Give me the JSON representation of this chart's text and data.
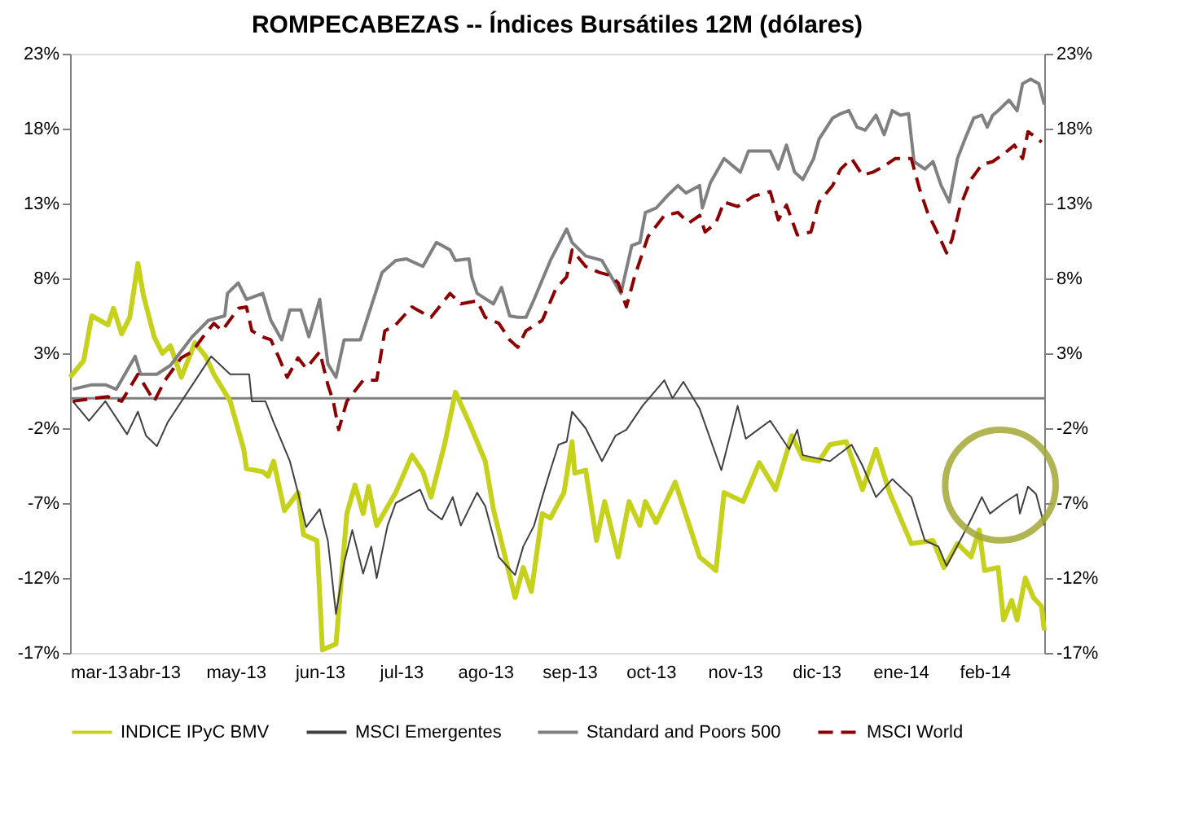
{
  "chart_data": {
    "type": "line",
    "title": "ROMPECABEZAS -- Índices Bursátiles 12M (dólares)",
    "grid": false,
    "legend": "bottom",
    "xlim": [
      "2013-03-01",
      "2014-02-23"
    ],
    "xticks": [
      {
        "value": "2013-03-01",
        "label": "mar-13"
      },
      {
        "value": "2013-04-01",
        "label": "abr-13"
      },
      {
        "value": "2013-05-01",
        "label": "may-13"
      },
      {
        "value": "2013-06-01",
        "label": "jun-13"
      },
      {
        "value": "2013-07-01",
        "label": "jul-13"
      },
      {
        "value": "2013-08-01",
        "label": "ago-13"
      },
      {
        "value": "2013-09-01",
        "label": "sep-13"
      },
      {
        "value": "2013-10-01",
        "label": "oct-13"
      },
      {
        "value": "2013-11-01",
        "label": "nov-13"
      },
      {
        "value": "2013-12-01",
        "label": "dic-13"
      },
      {
        "value": "2014-01-01",
        "label": "ene-14"
      },
      {
        "value": "2014-02-01",
        "label": "feb-14"
      }
    ],
    "ylim": [
      -17,
      23
    ],
    "yticks": [
      {
        "value": -17,
        "label": "-17%"
      },
      {
        "value": -12,
        "label": "-12%"
      },
      {
        "value": -7,
        "label": "-7%"
      },
      {
        "value": -2,
        "label": "-2%"
      },
      {
        "value": 3,
        "label": "3%"
      },
      {
        "value": 8,
        "label": "8%"
      },
      {
        "value": 13,
        "label": "13%"
      },
      {
        "value": 18,
        "label": "18%"
      },
      {
        "value": 23,
        "label": "23%"
      }
    ],
    "ref_lines": [
      {
        "axis": "y",
        "value": 0,
        "color": "#808080"
      }
    ],
    "y2lim": [
      -17,
      23
    ],
    "y2ticks": [
      {
        "value": -17,
        "label": "-17%"
      },
      {
        "value": -12,
        "label": "-12%"
      },
      {
        "value": -7,
        "label": "-7%"
      },
      {
        "value": -2,
        "label": "-2%"
      },
      {
        "value": 3,
        "label": "3%"
      },
      {
        "value": 8,
        "label": "8%"
      },
      {
        "value": 13,
        "label": "13%"
      },
      {
        "value": 18,
        "label": "18%"
      },
      {
        "value": 23,
        "label": "23%"
      }
    ],
    "series": [
      {
        "name": "INDICE IPyC BMV",
        "color": "#c5d11a",
        "line_style": "solid",
        "x": [
          "2013-03-01",
          "2013-03-06",
          "2013-03-09",
          "2013-03-15",
          "2013-03-17",
          "2013-03-20",
          "2013-03-23",
          "2013-03-26",
          "2013-03-28",
          "2013-04-01",
          "2013-04-04",
          "2013-04-07",
          "2013-04-11",
          "2013-04-16",
          "2013-04-20",
          "2013-04-23",
          "2013-04-29",
          "2013-05-04",
          "2013-05-05",
          "2013-05-11",
          "2013-05-13",
          "2013-05-15",
          "2013-05-19",
          "2013-05-24",
          "2013-05-26",
          "2013-05-31",
          "2013-06-02",
          "2013-06-07",
          "2013-06-11",
          "2013-06-14",
          "2013-06-17",
          "2013-06-19",
          "2013-06-22",
          "2013-06-29",
          "2013-07-05",
          "2013-07-09",
          "2013-07-12",
          "2013-07-17",
          "2013-07-21",
          "2013-07-26",
          "2013-08-01",
          "2013-08-04",
          "2013-08-12",
          "2013-08-15",
          "2013-08-18",
          "2013-08-22",
          "2013-08-25",
          "2013-08-30",
          "2013-09-02",
          "2013-09-03",
          "2013-09-07",
          "2013-09-11",
          "2013-09-14",
          "2013-09-19",
          "2013-09-23",
          "2013-09-27",
          "2013-09-29",
          "2013-10-03",
          "2013-10-10",
          "2013-10-19",
          "2013-10-25",
          "2013-10-28",
          "2013-11-04",
          "2013-11-10",
          "2013-11-16",
          "2013-11-22",
          "2013-11-26",
          "2013-12-02",
          "2013-12-06",
          "2013-12-12",
          "2013-12-18",
          "2013-12-23",
          "2013-12-28",
          "2014-01-05",
          "2014-01-13",
          "2014-01-17",
          "2014-01-22",
          "2014-01-27",
          "2014-01-30",
          "2014-02-01",
          "2014-02-06",
          "2014-02-08",
          "2014-02-11",
          "2014-02-13",
          "2014-02-16",
          "2014-02-19",
          "2014-02-22",
          "2014-02-23"
        ],
        "values": [
          1.4,
          2.5,
          5.5,
          4.9,
          6.0,
          4.3,
          5.4,
          9.0,
          6.9,
          4.1,
          3.0,
          3.5,
          1.4,
          3.7,
          2.8,
          1.6,
          -0.2,
          -3.4,
          -4.7,
          -4.9,
          -5.2,
          -4.2,
          -7.5,
          -6.3,
          -9.1,
          -9.5,
          -16.8,
          -16.4,
          -7.7,
          -5.8,
          -7.7,
          -5.9,
          -8.5,
          -6.3,
          -3.8,
          -4.9,
          -6.6,
          -3.1,
          0.4,
          -1.6,
          -4.2,
          -7.4,
          -13.3,
          -11.3,
          -12.9,
          -7.7,
          -8.0,
          -6.3,
          -2.9,
          -5.0,
          -4.8,
          -9.5,
          -6.9,
          -10.6,
          -6.9,
          -8.5,
          -6.9,
          -8.3,
          -5.6,
          -10.6,
          -11.5,
          -6.3,
          -6.9,
          -4.3,
          -6.1,
          -2.5,
          -4.0,
          -4.2,
          -3.1,
          -2.9,
          -6.1,
          -3.4,
          -6.3,
          -9.7,
          -9.5,
          -11.3,
          -9.7,
          -10.6,
          -8.8,
          -11.5,
          -11.3,
          -14.8,
          -13.5,
          -14.8,
          -12.0,
          -13.3,
          -13.9,
          -15.5
        ]
      },
      {
        "name": "MSCI Emergentes",
        "color": "#404040",
        "line_style": "solid",
        "x": [
          "2013-03-02",
          "2013-03-08",
          "2013-03-14",
          "2013-03-22",
          "2013-03-26",
          "2013-03-29",
          "2013-04-02",
          "2013-04-06",
          "2013-04-14",
          "2013-04-22",
          "2013-04-29",
          "2013-05-06",
          "2013-05-07",
          "2013-05-12",
          "2013-05-15",
          "2013-05-21",
          "2013-05-24",
          "2013-05-27",
          "2013-06-01",
          "2013-06-04",
          "2013-06-07",
          "2013-06-10",
          "2013-06-13",
          "2013-06-17",
          "2013-06-20",
          "2013-06-22",
          "2013-06-26",
          "2013-06-29",
          "2013-07-08",
          "2013-07-11",
          "2013-07-16",
          "2013-07-20",
          "2013-07-23",
          "2013-07-29",
          "2013-08-01",
          "2013-08-06",
          "2013-08-12",
          "2013-08-15",
          "2013-08-19",
          "2013-08-22",
          "2013-08-25",
          "2013-08-28",
          "2013-08-31",
          "2013-09-02",
          "2013-09-07",
          "2013-09-13",
          "2013-09-18",
          "2013-09-22",
          "2013-09-28",
          "2013-10-06",
          "2013-10-09",
          "2013-10-13",
          "2013-10-19",
          "2013-10-27",
          "2013-11-02",
          "2013-11-05",
          "2013-11-14",
          "2013-11-21",
          "2013-11-24",
          "2013-11-26",
          "2013-12-06",
          "2013-12-14",
          "2013-12-18",
          "2013-12-23",
          "2013-12-29",
          "2014-01-05",
          "2014-01-10",
          "2014-01-15",
          "2014-01-18",
          "2014-01-23",
          "2014-01-27",
          "2014-01-31",
          "2014-02-03",
          "2014-02-08",
          "2014-02-13",
          "2014-02-14",
          "2014-02-17",
          "2014-02-20",
          "2014-02-23"
        ],
        "values": [
          -0.2,
          -1.5,
          -0.2,
          -2.4,
          -0.9,
          -2.5,
          -3.2,
          -1.6,
          0.6,
          2.8,
          1.6,
          1.6,
          -0.2,
          -0.2,
          -1.6,
          -4.2,
          -6.3,
          -8.6,
          -7.4,
          -9.5,
          -14.4,
          -11.0,
          -8.8,
          -11.7,
          -9.9,
          -12.0,
          -8.5,
          -7.0,
          -6.1,
          -7.4,
          -8.1,
          -6.6,
          -8.5,
          -6.3,
          -7.2,
          -10.6,
          -11.8,
          -9.9,
          -8.5,
          -6.6,
          -4.8,
          -3.1,
          -2.9,
          -0.9,
          -2.0,
          -4.2,
          -2.5,
          -2.1,
          -0.5,
          1.2,
          0.0,
          1.1,
          -0.7,
          -4.8,
          -0.5,
          -2.7,
          -1.5,
          -3.4,
          -2.1,
          -3.8,
          -4.2,
          -3.1,
          -4.5,
          -6.6,
          -5.4,
          -6.6,
          -9.5,
          -9.9,
          -11.2,
          -9.5,
          -8.1,
          -6.6,
          -7.7,
          -7.0,
          -6.4,
          -7.7,
          -5.9,
          -6.4,
          -8.5
        ]
      },
      {
        "name": "Standard and Poors 500",
        "color": "#808080",
        "line_style": "solid",
        "x": [
          "2013-03-02",
          "2013-03-09",
          "2013-03-14",
          "2013-03-18",
          "2013-03-25",
          "2013-03-27",
          "2013-04-02",
          "2013-04-07",
          "2013-04-15",
          "2013-04-21",
          "2013-04-27",
          "2013-04-28",
          "2013-05-02",
          "2013-05-05",
          "2013-05-11",
          "2013-05-14",
          "2013-05-18",
          "2013-05-21",
          "2013-05-25",
          "2013-05-28",
          "2013-06-01",
          "2013-06-04",
          "2013-06-07",
          "2013-06-10",
          "2013-06-16",
          "2013-06-24",
          "2013-06-29",
          "2013-07-03",
          "2013-07-09",
          "2013-07-14",
          "2013-07-19",
          "2013-07-21",
          "2013-07-26",
          "2013-07-27",
          "2013-07-29",
          "2013-08-04",
          "2013-08-07",
          "2013-08-10",
          "2013-08-13",
          "2013-08-16",
          "2013-08-19",
          "2013-08-25",
          "2013-08-31",
          "2013-09-02",
          "2013-09-07",
          "2013-09-13",
          "2013-09-20",
          "2013-09-24",
          "2013-09-27",
          "2013-09-29",
          "2013-10-03",
          "2013-10-07",
          "2013-10-11",
          "2013-10-14",
          "2013-10-19",
          "2013-10-20",
          "2013-10-23",
          "2013-10-28",
          "2013-11-03",
          "2013-11-06",
          "2013-11-14",
          "2013-11-17",
          "2013-11-20",
          "2013-11-23",
          "2013-11-26",
          "2013-11-30",
          "2013-12-02",
          "2013-12-07",
          "2013-12-10",
          "2013-12-13",
          "2013-12-16",
          "2013-12-19",
          "2013-12-23",
          "2013-12-26",
          "2013-12-29",
          "2014-01-01",
          "2014-01-04",
          "2014-01-06",
          "2014-01-10",
          "2014-01-13",
          "2014-01-16",
          "2014-01-19",
          "2014-01-22",
          "2014-01-25",
          "2014-01-28",
          "2014-01-31",
          "2014-02-02",
          "2014-02-04",
          "2014-02-06",
          "2014-02-10",
          "2014-02-13",
          "2014-02-15",
          "2014-02-18",
          "2014-02-21",
          "2014-02-23"
        ],
        "values": [
          0.6,
          0.9,
          0.9,
          0.6,
          2.8,
          1.6,
          1.6,
          2.2,
          4.1,
          5.2,
          5.5,
          7.0,
          7.7,
          6.6,
          7.0,
          5.2,
          3.9,
          5.9,
          5.9,
          4.1,
          6.6,
          2.3,
          1.4,
          3.9,
          3.9,
          8.4,
          9.2,
          9.3,
          8.8,
          10.4,
          9.9,
          9.2,
          9.3,
          8.1,
          7.0,
          6.3,
          7.4,
          5.5,
          5.4,
          5.4,
          6.6,
          9.2,
          11.3,
          10.4,
          9.5,
          9.2,
          7.0,
          10.2,
          10.4,
          12.4,
          12.7,
          13.5,
          14.2,
          13.7,
          14.2,
          12.7,
          14.4,
          16.0,
          15.1,
          16.5,
          16.5,
          15.3,
          16.9,
          15.1,
          14.6,
          16.0,
          17.3,
          18.7,
          19.0,
          19.2,
          18.1,
          17.9,
          18.9,
          17.6,
          19.2,
          18.9,
          19.0,
          15.8,
          15.3,
          15.8,
          14.2,
          13.1,
          16.0,
          17.4,
          18.7,
          18.9,
          18.1,
          18.9,
          19.2,
          19.9,
          19.2,
          21.0,
          21.3,
          21.0,
          19.6
        ]
      },
      {
        "name": "MSCI World",
        "color": "#8b0000",
        "line_style": "dashed",
        "x": [
          "2013-03-02",
          "2013-03-10",
          "2013-03-15",
          "2013-03-20",
          "2013-03-26",
          "2013-03-29",
          "2013-04-01",
          "2013-04-05",
          "2013-04-11",
          "2013-04-15",
          "2013-04-19",
          "2013-04-23",
          "2013-04-26",
          "2013-05-02",
          "2013-05-05",
          "2013-05-07",
          "2013-05-11",
          "2013-05-14",
          "2013-05-17",
          "2013-05-20",
          "2013-05-24",
          "2013-05-27",
          "2013-06-01",
          "2013-06-04",
          "2013-06-06",
          "2013-06-08",
          "2013-06-11",
          "2013-06-17",
          "2013-06-22",
          "2013-06-25",
          "2013-06-29",
          "2013-07-05",
          "2013-07-12",
          "2013-07-19",
          "2013-07-23",
          "2013-07-29",
          "2013-08-01",
          "2013-08-06",
          "2013-08-10",
          "2013-08-13",
          "2013-08-16",
          "2013-08-22",
          "2013-08-27",
          "2013-08-31",
          "2013-09-02",
          "2013-09-07",
          "2013-09-12",
          "2013-09-16",
          "2013-09-19",
          "2013-09-22",
          "2013-09-25",
          "2013-09-30",
          "2013-10-06",
          "2013-10-11",
          "2013-10-15",
          "2013-10-19",
          "2013-10-21",
          "2013-10-25",
          "2013-10-28",
          "2013-11-02",
          "2013-11-08",
          "2013-11-14",
          "2013-11-17",
          "2013-11-20",
          "2013-11-24",
          "2013-11-29",
          "2013-12-02",
          "2013-12-07",
          "2013-12-10",
          "2013-12-14",
          "2013-12-18",
          "2013-12-22",
          "2013-12-26",
          "2013-12-30",
          "2014-01-05",
          "2014-01-08",
          "2014-01-11",
          "2014-01-15",
          "2014-01-18",
          "2014-01-20",
          "2014-01-23",
          "2014-01-27",
          "2014-01-31",
          "2014-02-04",
          "2014-02-08",
          "2014-02-12",
          "2014-02-15",
          "2014-02-17",
          "2014-02-20",
          "2014-02-22"
        ],
        "values": [
          -0.2,
          0.0,
          0.1,
          -0.2,
          1.6,
          0.7,
          -0.2,
          1.2,
          2.7,
          3.1,
          4.1,
          5.0,
          4.5,
          6.0,
          6.1,
          4.5,
          4.1,
          3.9,
          2.7,
          1.4,
          2.7,
          2.0,
          3.1,
          0.9,
          -0.2,
          -2.1,
          -0.2,
          1.2,
          1.2,
          4.5,
          4.9,
          6.1,
          5.4,
          7.0,
          6.3,
          6.5,
          5.4,
          5.0,
          3.9,
          3.4,
          4.5,
          5.2,
          7.3,
          8.1,
          9.9,
          8.8,
          8.4,
          8.2,
          7.7,
          6.1,
          8.1,
          10.8,
          12.2,
          12.4,
          11.7,
          12.2,
          11.1,
          11.7,
          13.1,
          12.8,
          13.5,
          13.8,
          11.9,
          12.9,
          10.9,
          11.1,
          13.1,
          14.2,
          15.3,
          16.0,
          14.9,
          15.1,
          15.5,
          16.0,
          16.0,
          14.0,
          12.4,
          10.9,
          9.7,
          10.6,
          12.8,
          14.6,
          15.6,
          15.8,
          16.3,
          16.9,
          16.0,
          17.8,
          17.4,
          17.1
        ]
      }
    ]
  }
}
